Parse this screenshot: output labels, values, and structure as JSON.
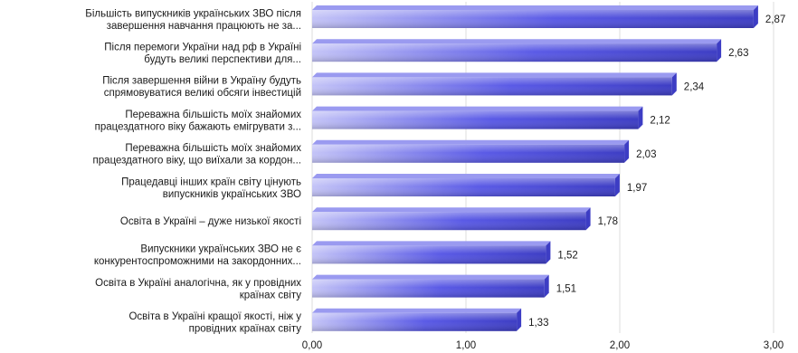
{
  "chart_data": {
    "type": "bar",
    "orientation": "horizontal",
    "categories": [
      [
        "Більшість випускників українських ЗВО після",
        "завершення навчання працюють не за..."
      ],
      [
        "Після перемоги України над рф в Україні",
        "будуть великі перспективи для..."
      ],
      [
        "Після завершення війни в Україну будуть",
        "спрямовуватися великі обсяги інвестицій"
      ],
      [
        "Переважна більшість моїх знайомих",
        "працездатного віку бажають емігрувати з..."
      ],
      [
        "Переважна більшість моїх знайомих",
        "працездатного віку, що виїхали за кордон..."
      ],
      [
        "Працедавці інших країн світу цінують",
        "випускників українських ЗВО"
      ],
      [
        "Освіта в Україні – дуже низької якості"
      ],
      [
        "Випускники українських ЗВО не є",
        "конкурентоспроможними на закордонних..."
      ],
      [
        "Освіта в Україні аналогічна, як у провідних",
        "країнах світу"
      ],
      [
        "Освіта в Україні кращої якості, ніж у",
        "провідних країнах світу"
      ]
    ],
    "values": [
      2.87,
      2.63,
      2.34,
      2.12,
      2.03,
      1.97,
      1.78,
      1.52,
      1.51,
      1.33
    ],
    "value_labels": [
      "2,87",
      "2,63",
      "2,34",
      "2,12",
      "2,03",
      "1,97",
      "1,78",
      "1,52",
      "1,51",
      "1,33"
    ],
    "xlim": [
      0,
      3
    ],
    "ticks": [
      0,
      1,
      2,
      3
    ],
    "tick_labels": [
      "0,00",
      "1,00",
      "2,00",
      "3,00"
    ],
    "grid": true,
    "bar_color": "#5a5ae6",
    "bar_color_light": "#c4c4f7",
    "bar_color_dark": "#3d3dc4"
  }
}
